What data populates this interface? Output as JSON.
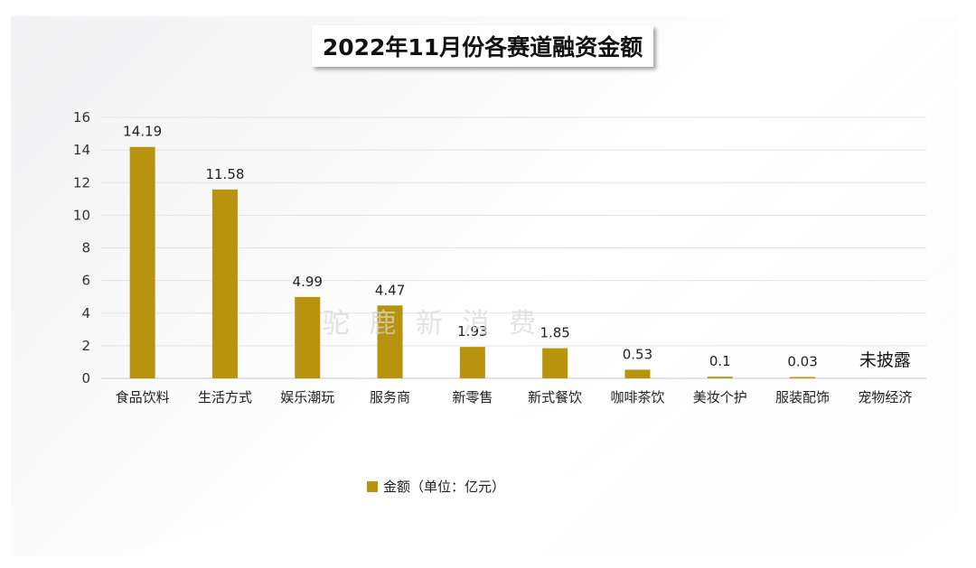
{
  "chart_data": {
    "type": "bar",
    "title": "2022年11月份各赛道融资金额",
    "categories": [
      "食品饮料",
      "生活方式",
      "娱乐潮玩",
      "服务商",
      "新零售",
      "新式餐饮",
      "咖啡茶饮",
      "美妆个护",
      "服装配饰",
      "宠物经济"
    ],
    "series": [
      {
        "name": "金额（单位：亿元）",
        "values": [
          14.19,
          11.58,
          4.99,
          4.47,
          1.93,
          1.85,
          0.53,
          0.1,
          0.03,
          null
        ],
        "labels": [
          "14.19",
          "11.58",
          "4.99",
          "4.47",
          "1.93",
          "1.85",
          "0.53",
          "0.1",
          "0.03",
          "未披露"
        ]
      }
    ],
    "ylim": [
      0,
      16
    ],
    "yticks": [
      0,
      2,
      4,
      6,
      8,
      10,
      12,
      14,
      16
    ],
    "xlabel": "",
    "ylabel": "",
    "grid": true,
    "legend_position": "bottom-center",
    "bar_color": "#b8930d",
    "watermark": "驼 鹿 新 消 费"
  }
}
